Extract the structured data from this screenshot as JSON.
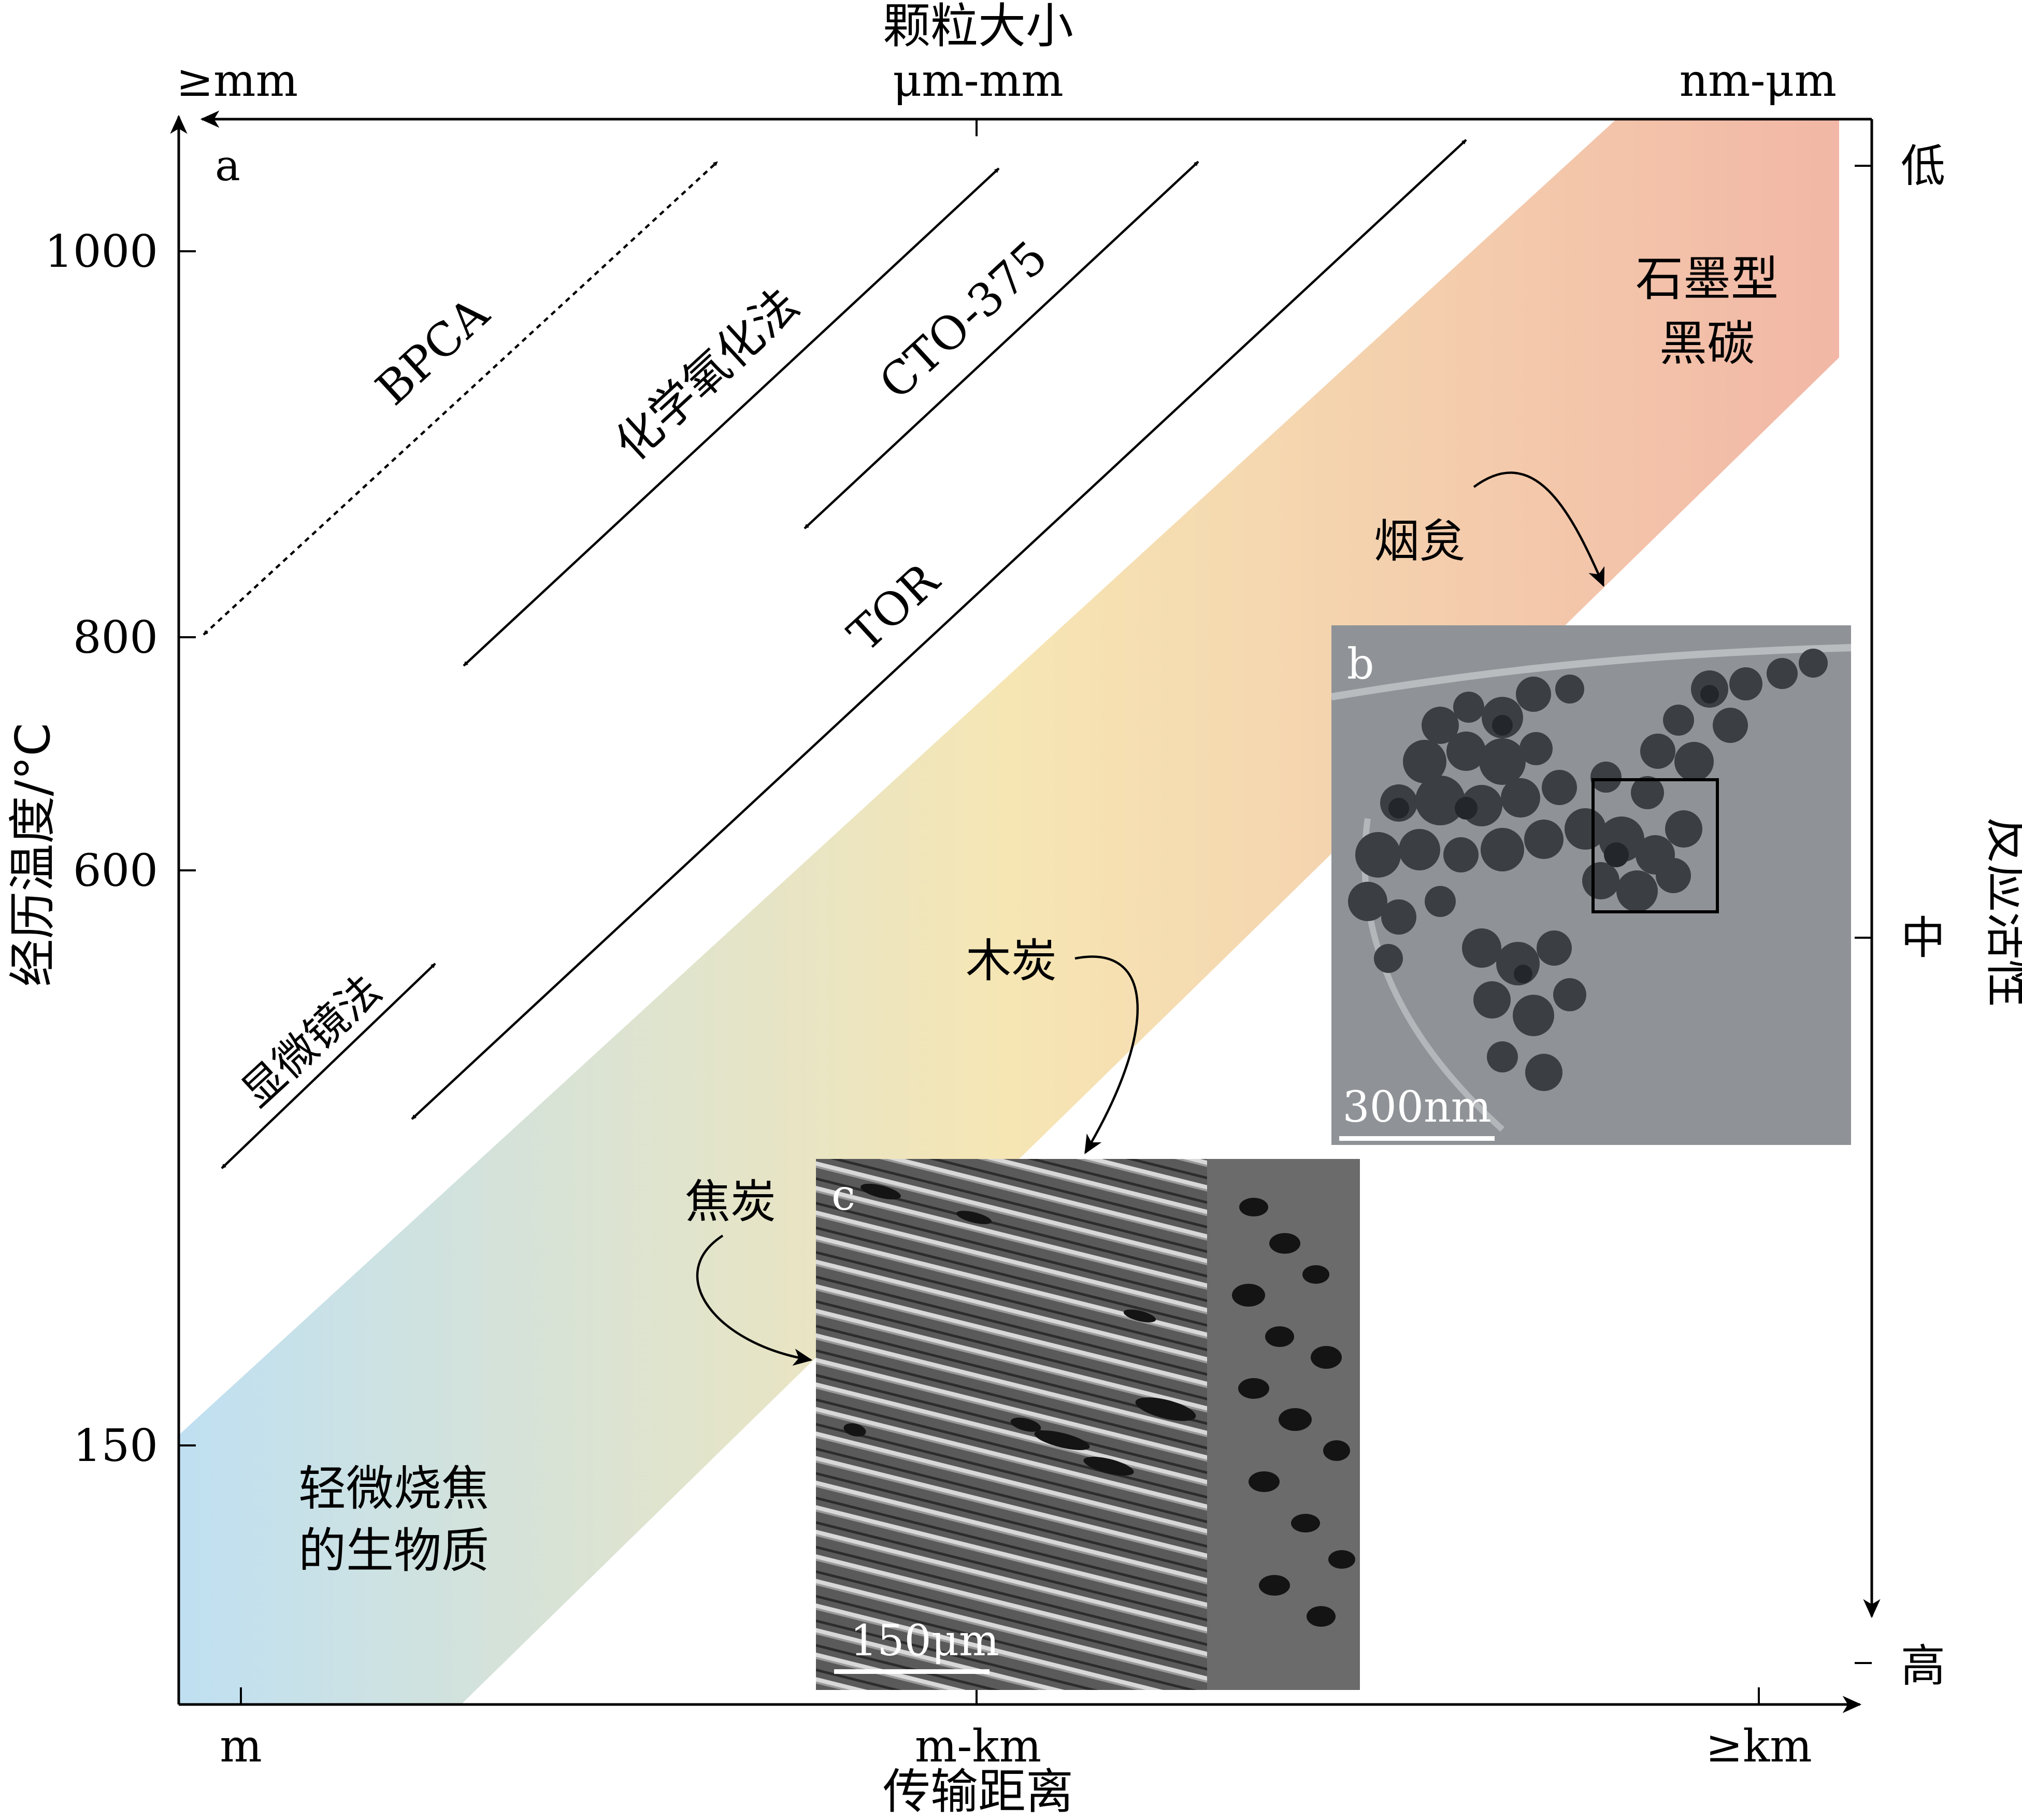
{
  "top_axis": {
    "title": "颗粒大小",
    "ticks": [
      "≥mm",
      "μm-mm",
      "nm-μm"
    ]
  },
  "bottom_axis": {
    "title": "传输距离",
    "ticks": [
      "m",
      "m-km",
      "≥km"
    ]
  },
  "left_axis": {
    "title": "经历温度/°C",
    "ticks": [
      "1000",
      "800",
      "600",
      "150"
    ]
  },
  "right_axis": {
    "title": "反应活性",
    "ticks": [
      "低",
      "中",
      "高"
    ]
  },
  "panel_labels": {
    "a": "a",
    "b": "b",
    "c": "c"
  },
  "methods": {
    "bpca": "BPCA",
    "chemical_oxidation": "化学氧化法",
    "cto": "CTO-375",
    "tor": "TOR",
    "microscopy": "显微镜法"
  },
  "band_labels": {
    "graphitic_line1": "石墨型",
    "graphitic_line2": "黑碳",
    "biomass_line1": "轻微烧焦",
    "biomass_line2": "的生物质"
  },
  "annotations": {
    "soot": "烟炱",
    "charcoal": "木炭",
    "char": "焦炭"
  },
  "scale_bars": {
    "b": "300nm",
    "c": "150μm"
  },
  "colors": {
    "band_start": "#bfe0f2",
    "band_mid": "#f6e6b4",
    "band_end": "#f2b7a6",
    "inset_b_bg": "#8f9397",
    "inset_c_bg": "#5e5e5e"
  }
}
